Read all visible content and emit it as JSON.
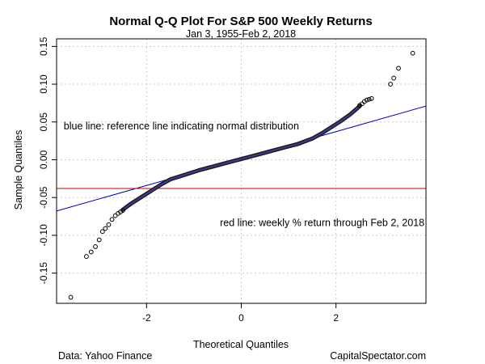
{
  "chart_data": {
    "type": "scatter",
    "title": "Normal Q-Q Plot For S&P 500 Weekly Returns",
    "subtitle": "Jan 3, 1955-Feb 2, 2018",
    "xlabel": "Theoretical Quantiles",
    "ylabel": "Sample Quantiles",
    "xlim": [
      -3.9,
      3.9
    ],
    "ylim": [
      -0.19,
      0.16
    ],
    "x_ticks": [
      -2,
      0,
      2
    ],
    "x_tick_labels": [
      "-2",
      "0",
      "2"
    ],
    "y_ticks": [
      -0.15,
      -0.1,
      -0.05,
      0.0,
      0.05,
      0.1,
      0.15
    ],
    "y_tick_labels": [
      "-0.15",
      "-0.10",
      "-0.05",
      "0.00",
      "0.05",
      "0.10",
      "0.15"
    ],
    "grid": true,
    "reference_line": {
      "intercept": 0.0016,
      "slope": 0.0178,
      "color": "#0000cc"
    },
    "horizontal_line": {
      "y": -0.038,
      "color": "#cc0000"
    },
    "annotations": [
      {
        "text": "blue line: reference line indicating normal distribution",
        "x": -3.75,
        "y": 0.04
      },
      {
        "text": "red line: weekly % return through Feb 2, 2018",
        "x": -0.45,
        "y": -0.088
      }
    ],
    "tail_points": [
      {
        "x": -3.6,
        "y": -0.182
      },
      {
        "x": -3.27,
        "y": -0.128
      },
      {
        "x": -3.17,
        "y": -0.122
      },
      {
        "x": -3.08,
        "y": -0.115
      },
      {
        "x": -3.0,
        "y": -0.106
      },
      {
        "x": -2.93,
        "y": -0.095
      },
      {
        "x": -2.87,
        "y": -0.091
      },
      {
        "x": -2.8,
        "y": -0.086
      },
      {
        "x": -2.73,
        "y": -0.079
      },
      {
        "x": -2.66,
        "y": -0.074
      },
      {
        "x": -2.6,
        "y": -0.071
      },
      {
        "x": -2.55,
        "y": -0.069
      },
      {
        "x": -2.5,
        "y": -0.067
      },
      {
        "x": 2.5,
        "y": 0.072
      },
      {
        "x": 2.55,
        "y": 0.074
      },
      {
        "x": 2.6,
        "y": 0.077
      },
      {
        "x": 2.65,
        "y": 0.079
      },
      {
        "x": 2.7,
        "y": 0.08
      },
      {
        "x": 2.75,
        "y": 0.081
      },
      {
        "x": 3.15,
        "y": 0.1
      },
      {
        "x": 3.22,
        "y": 0.108
      },
      {
        "x": 3.32,
        "y": 0.121
      },
      {
        "x": 3.62,
        "y": 0.141
      }
    ],
    "curve": {
      "x": [
        -2.5,
        -2.3,
        -2.1,
        -1.9,
        -1.7,
        -1.5,
        -1.2,
        -0.9,
        -0.6,
        -0.3,
        0.0,
        0.3,
        0.6,
        0.9,
        1.2,
        1.5,
        1.7,
        1.9,
        2.1,
        2.3,
        2.5
      ],
      "y": [
        -0.066,
        -0.057,
        -0.049,
        -0.041,
        -0.033,
        -0.026,
        -0.02,
        -0.014,
        -0.009,
        -0.004,
        0.001,
        0.006,
        0.011,
        0.016,
        0.021,
        0.028,
        0.035,
        0.043,
        0.051,
        0.06,
        0.071
      ]
    }
  },
  "footer": {
    "source": "Data: Yahoo Finance",
    "credit": "CapitalSpectator.com"
  }
}
